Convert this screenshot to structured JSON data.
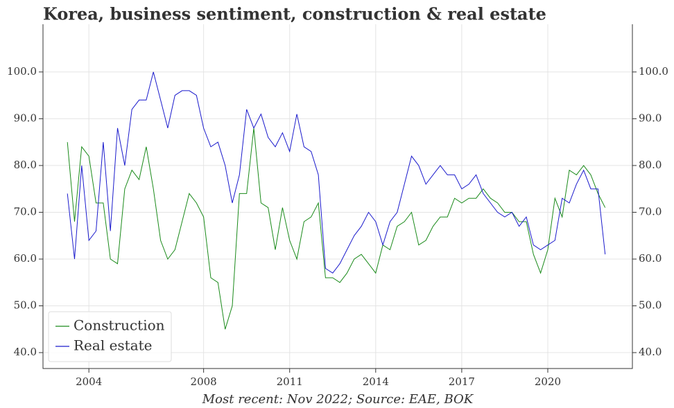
{
  "chart_data": {
    "type": "line",
    "title": "Korea, business sentiment, construction & real estate",
    "caption": "Most recent: Nov 2022; Source: EAE, BOK",
    "x": [
      2003.25,
      2003.5,
      2003.75,
      2004,
      2004.25,
      2004.5,
      2004.75,
      2005,
      2005.25,
      2005.5,
      2005.75,
      2006,
      2006.25,
      2006.5,
      2006.75,
      2007,
      2007.25,
      2007.5,
      2007.75,
      2008,
      2008.25,
      2008.5,
      2008.75,
      2009,
      2009.25,
      2009.5,
      2009.75,
      2010,
      2010.25,
      2010.5,
      2010.75,
      2011,
      2011.25,
      2011.5,
      2011.75,
      2012,
      2012.25,
      2012.5,
      2012.75,
      2013,
      2013.25,
      2013.5,
      2013.75,
      2014,
      2014.25,
      2014.5,
      2014.75,
      2015,
      2015.25,
      2015.5,
      2015.75,
      2016,
      2016.25,
      2016.5,
      2016.75,
      2017,
      2017.25,
      2017.5,
      2017.75,
      2018,
      2018.25,
      2018.5,
      2018.75,
      2019,
      2019.25,
      2019.5,
      2019.75,
      2020,
      2020.25,
      2020.5,
      2020.75,
      2021,
      2021.25,
      2021.5,
      2021.75,
      2022
    ],
    "series": [
      {
        "name": "Construction",
        "color": "#1a8a1a",
        "values": [
          85,
          68,
          84,
          82,
          72,
          72,
          60,
          59,
          75,
          79,
          77,
          84,
          75,
          64,
          60,
          62,
          68,
          74,
          72,
          69,
          56,
          55,
          45,
          50,
          74,
          74,
          88,
          72,
          71,
          62,
          71,
          64,
          60,
          68,
          69,
          72,
          56,
          56,
          55,
          57,
          60,
          61,
          59,
          57,
          63,
          62,
          67,
          68,
          70,
          63,
          64,
          67,
          69,
          69,
          73,
          72,
          73,
          73,
          75,
          73,
          72,
          70,
          70,
          68,
          68,
          61,
          57,
          62,
          73,
          69,
          79,
          78,
          80,
          78,
          74,
          71
        ]
      },
      {
        "name": "Real estate",
        "color": "#1a1acc",
        "values": [
          74,
          60,
          80,
          64,
          66,
          85,
          66,
          88,
          80,
          92,
          94,
          94,
          100,
          94,
          88,
          95,
          96,
          96,
          95,
          88,
          84,
          85,
          80,
          72,
          78,
          92,
          88,
          91,
          86,
          84,
          87,
          83,
          91,
          84,
          83,
          78,
          58,
          57,
          59,
          62,
          65,
          67,
          70,
          68,
          63,
          68,
          70,
          76,
          82,
          80,
          76,
          78,
          80,
          78,
          78,
          75,
          76,
          78,
          74,
          72,
          70,
          69,
          70,
          67,
          69,
          63,
          62,
          63,
          64,
          73,
          72,
          76,
          79,
          75,
          75,
          61
        ]
      }
    ],
    "xlim": [
      2002.4,
      2022.95
    ],
    "xticks": [
      2004,
      2008,
      2011,
      2014,
      2017,
      2020
    ],
    "ylim": [
      36.6,
      110.2
    ],
    "yticks": [
      {
        "value": 40,
        "label": "40.0"
      },
      {
        "value": 50,
        "label": "50.0"
      },
      {
        "value": 60,
        "label": "60.0"
      },
      {
        "value": 70,
        "label": "70.0"
      },
      {
        "value": 80,
        "label": "80.0"
      },
      {
        "value": 90,
        "label": "90.0"
      },
      {
        "value": 100,
        "label": "100.0"
      }
    ],
    "grid": true,
    "legend": "lower left"
  }
}
